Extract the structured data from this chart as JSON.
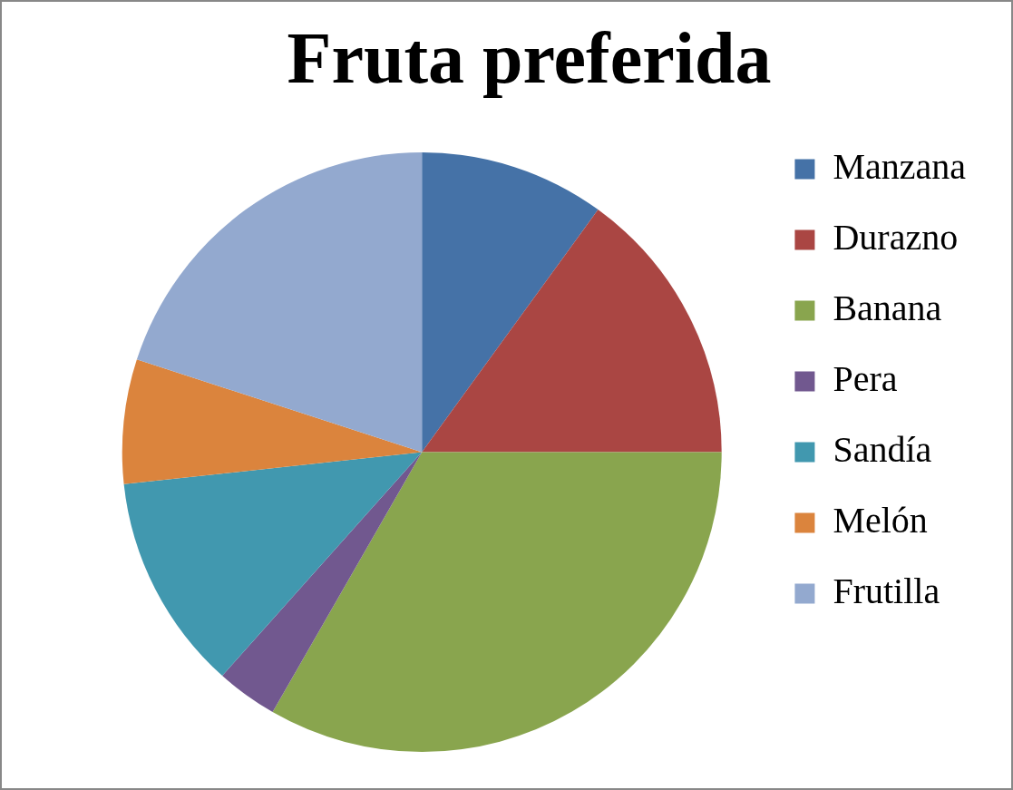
{
  "chart_data": {
    "type": "pie",
    "title": "Fruta preferida",
    "categories": [
      "Manzana",
      "Durazno",
      "Banana",
      "Pera",
      "Sandía",
      "Melón",
      "Frutilla"
    ],
    "values": [
      10,
      15,
      33.3,
      3.3,
      11.7,
      6.7,
      20
    ],
    "colors": [
      "#4572a7",
      "#aa4643",
      "#89a54e",
      "#71588f",
      "#4198af",
      "#db843d",
      "#93a9cf"
    ],
    "legend": "right"
  }
}
